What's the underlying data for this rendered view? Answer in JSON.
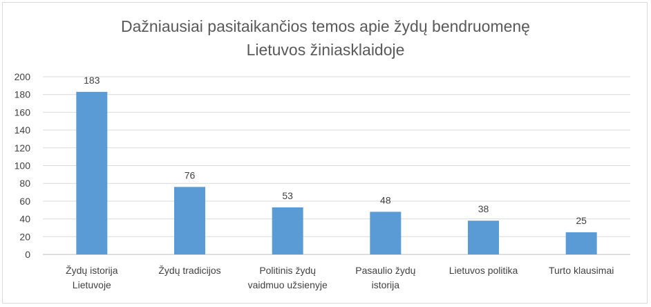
{
  "chart_data": {
    "type": "bar",
    "title_lines": [
      "Dažniausiai pasitaikančios temos apie žydų bendruomenę",
      "Lietuvos žiniasklaidoje"
    ],
    "categories": [
      [
        "Žydų istorija",
        "Lietuvoje"
      ],
      [
        "Žydų tradicijos"
      ],
      [
        "Politinis žydų",
        "vaidmuo užsienyje"
      ],
      [
        "Pasaulio žydų",
        "istorija"
      ],
      [
        "Lietuvos politika"
      ],
      [
        "Turto klausimai"
      ]
    ],
    "values": [
      183,
      76,
      53,
      48,
      38,
      25
    ],
    "data_labels": [
      "183",
      "76",
      "53",
      "48",
      "38",
      "25"
    ],
    "yticks": [
      "0",
      "20",
      "40",
      "60",
      "80",
      "100",
      "120",
      "140",
      "160",
      "180",
      "200"
    ],
    "ylim": [
      0,
      200
    ],
    "ystep": 20,
    "grid": true,
    "legend": "none",
    "colors": {
      "bar": "#5b9bd5",
      "grid": "#d9d9d9",
      "axis": "#bfbfbf"
    }
  }
}
